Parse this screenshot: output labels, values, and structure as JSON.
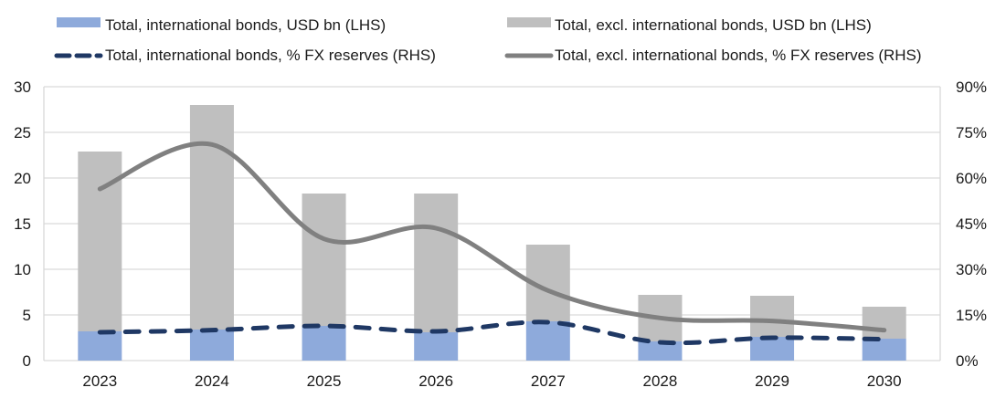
{
  "chart_data": {
    "type": "bar",
    "title": "",
    "xlabel": "",
    "ylabel": "",
    "y2label": "",
    "categories": [
      "2023",
      "2024",
      "2025",
      "2026",
      "2027",
      "2028",
      "2029",
      "2030"
    ],
    "ylim": [
      0,
      30
    ],
    "yticks": [
      "0",
      "5",
      "10",
      "15",
      "20",
      "25",
      "30"
    ],
    "ytick_values": [
      0,
      5,
      10,
      15,
      20,
      25,
      30
    ],
    "y2lim": [
      0,
      90
    ],
    "y2ticks": [
      "0%",
      "15%",
      "30%",
      "45%",
      "60%",
      "75%",
      "90%"
    ],
    "y2tick_values": [
      0,
      15,
      30,
      45,
      60,
      75,
      90
    ],
    "grid": true,
    "legend_position": "top",
    "stacked": true,
    "series": [
      {
        "name": "Total, international bonds, USD bn (LHS)",
        "type": "bar",
        "axis": "left",
        "color": "#8eaadb",
        "values": [
          3.2,
          3.4,
          3.8,
          3.1,
          4.3,
          2.1,
          2.6,
          2.4
        ]
      },
      {
        "name": "Total, excl. international bonds, USD bn (LHS)",
        "type": "bar",
        "axis": "left",
        "color": "#bfbfbf",
        "values": [
          19.7,
          24.6,
          14.5,
          15.2,
          8.4,
          5.1,
          4.5,
          3.5
        ]
      },
      {
        "name": "Total, international bonds, % FX reserves (RHS)",
        "type": "line",
        "style": "dashed",
        "axis": "right",
        "color": "#1f3864",
        "values": [
          9.3,
          10.0,
          11.4,
          9.6,
          12.6,
          6.0,
          7.5,
          7.0
        ]
      },
      {
        "name": "Total, excl. international bonds, % FX reserves (RHS)",
        "type": "line",
        "style": "solid",
        "axis": "right",
        "color": "#808080",
        "values": [
          56.4,
          71.0,
          40.0,
          43.5,
          23.0,
          14.0,
          13.0,
          10.0
        ]
      }
    ]
  }
}
